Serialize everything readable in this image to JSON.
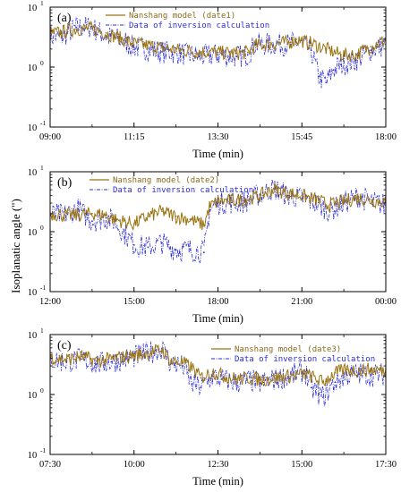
{
  "y_axis_label": "Isoplanatic angle (\")",
  "colors": {
    "model": "#9a7412",
    "inversion": "#2b2bd6"
  },
  "chart_data": [
    {
      "type": "line",
      "panel_label": "(a)",
      "xlabel": "Time (min)",
      "xticks": [
        "09:00",
        "11:15",
        "13:30",
        "15:45",
        "18:00"
      ],
      "x_range_hours": [
        9,
        18
      ],
      "yscale": "log",
      "ylim": [
        0.1,
        10
      ],
      "yticks": [
        "10",
        "10",
        "10"
      ],
      "ytick_exponents": [
        "1",
        "0",
        "-1"
      ],
      "legend_position": "top-left",
      "series": [
        {
          "name": "Nanshang model (date1)",
          "style": "solid",
          "points": [
            [
              9.0,
              3.6
            ],
            [
              9.3,
              3.8
            ],
            [
              9.7,
              4.3
            ],
            [
              10.1,
              4.4
            ],
            [
              10.5,
              3.7
            ],
            [
              10.9,
              3.0
            ],
            [
              11.2,
              2.5
            ],
            [
              11.6,
              2.3
            ],
            [
              12.0,
              2.1
            ],
            [
              12.5,
              1.9
            ],
            [
              13.0,
              1.8
            ],
            [
              13.5,
              1.75
            ],
            [
              14.0,
              1.7
            ],
            [
              14.3,
              1.75
            ],
            [
              14.5,
              2.3
            ],
            [
              15.45,
              2.6
            ],
            [
              15.6,
              2.9
            ],
            [
              16.0,
              2.5
            ],
            [
              16.4,
              2.0
            ],
            [
              16.8,
              1.6
            ],
            [
              17.2,
              1.6
            ],
            [
              17.6,
              2.2
            ],
            [
              18.0,
              2.8
            ]
          ]
        },
        {
          "name": "Data of inversion calculation",
          "style": "dash-dot",
          "points": [
            [
              9.0,
              3.3
            ],
            [
              9.3,
              3.1
            ],
            [
              9.7,
              4.6
            ],
            [
              10.1,
              4.7
            ],
            [
              10.5,
              3.2
            ],
            [
              10.9,
              2.9
            ],
            [
              11.2,
              2.2
            ],
            [
              11.6,
              2.0
            ],
            [
              12.0,
              1.8
            ],
            [
              12.5,
              1.7
            ],
            [
              13.0,
              1.5
            ],
            [
              13.5,
              1.6
            ],
            [
              14.0,
              1.5
            ],
            [
              14.3,
              1.6
            ],
            [
              14.5,
              2.4
            ],
            [
              15.45,
              2.4
            ],
            [
              15.6,
              2.6
            ],
            [
              16.0,
              1.9
            ],
            [
              16.2,
              0.7
            ],
            [
              16.4,
              0.55
            ],
            [
              16.6,
              0.9
            ],
            [
              16.8,
              1.1
            ],
            [
              17.2,
              1.3
            ],
            [
              17.6,
              1.9
            ],
            [
              18.0,
              2.4
            ]
          ]
        }
      ]
    },
    {
      "type": "line",
      "panel_label": "(b)",
      "xlabel": "Time (min)",
      "xticks": [
        "12:00",
        "15:00",
        "18:00",
        "21:00",
        "00:00"
      ],
      "x_range_hours": [
        12,
        24
      ],
      "yscale": "log",
      "ylim": [
        0.1,
        10
      ],
      "yticks": [
        "10",
        "10",
        "10"
      ],
      "ytick_exponents": [
        "1",
        "0",
        "-1"
      ],
      "legend_position": "top-right",
      "series": [
        {
          "name": "Nanshang model (date2)",
          "style": "solid",
          "points": [
            [
              12.0,
              2.0
            ],
            [
              12.5,
              1.9
            ],
            [
              13.0,
              1.9
            ],
            [
              13.5,
              2.0
            ],
            [
              14.0,
              1.9
            ],
            [
              14.3,
              1.6
            ],
            [
              15.0,
              1.35
            ],
            [
              15.5,
              1.8
            ],
            [
              16.0,
              2.2
            ],
            [
              16.5,
              1.8
            ],
            [
              17.0,
              1.6
            ],
            [
              17.5,
              1.3
            ],
            [
              17.7,
              2.6
            ],
            [
              18.0,
              3.2
            ],
            [
              18.5,
              3.3
            ],
            [
              19.0,
              3.5
            ],
            [
              19.5,
              4.0
            ],
            [
              20.0,
              5.1
            ],
            [
              20.5,
              4.4
            ],
            [
              21.0,
              4.0
            ],
            [
              21.5,
              3.4
            ],
            [
              22.0,
              2.8
            ],
            [
              22.5,
              3.2
            ],
            [
              23.0,
              3.7
            ],
            [
              23.5,
              3.3
            ],
            [
              24.0,
              3.2
            ]
          ]
        },
        {
          "name": "Data of inversion calculation",
          "style": "dash-dot",
          "points": [
            [
              12.0,
              1.9
            ],
            [
              12.5,
              1.9
            ],
            [
              13.0,
              2.4
            ],
            [
              13.5,
              1.5
            ],
            [
              14.0,
              1.7
            ],
            [
              14.3,
              1.5
            ],
            [
              15.0,
              0.6
            ],
            [
              15.5,
              0.55
            ],
            [
              16.0,
              0.65
            ],
            [
              16.5,
              0.5
            ],
            [
              17.0,
              0.5
            ],
            [
              17.5,
              0.45
            ],
            [
              17.7,
              2.3
            ],
            [
              18.0,
              3.0
            ],
            [
              18.5,
              3.1
            ],
            [
              19.0,
              3.2
            ],
            [
              19.5,
              4.2
            ],
            [
              20.0,
              5.3
            ],
            [
              20.5,
              4.0
            ],
            [
              21.0,
              3.6
            ],
            [
              21.5,
              3.0
            ],
            [
              22.0,
              2.2
            ],
            [
              22.5,
              3.0
            ],
            [
              23.0,
              3.9
            ],
            [
              23.5,
              3.1
            ],
            [
              24.0,
              2.8
            ]
          ]
        }
      ]
    },
    {
      "type": "line",
      "panel_label": "(c)",
      "xlabel": "Time (min)",
      "xticks": [
        "07:30",
        "10:00",
        "12:30",
        "15:00",
        "17:30"
      ],
      "x_range_hours": [
        6.25,
        17.5
      ],
      "yscale": "log",
      "ylim": [
        0.1,
        10
      ],
      "yticks": [
        "10",
        "10",
        "10"
      ],
      "ytick_exponents": [
        "1",
        "0",
        "-1"
      ],
      "legend_position": "top-right",
      "series": [
        {
          "name": "Nanshang model (date3)",
          "style": "solid",
          "points": [
            [
              6.25,
              4.2
            ],
            [
              6.8,
              3.8
            ],
            [
              7.3,
              4.3
            ],
            [
              7.8,
              3.6
            ],
            [
              8.3,
              3.9
            ],
            [
              8.8,
              4.3
            ],
            [
              9.3,
              4.7
            ],
            [
              9.8,
              5.3
            ],
            [
              10.0,
              5.6
            ],
            [
              10.3,
              3.6
            ],
            [
              10.7,
              3.4
            ],
            [
              11.0,
              2.8
            ],
            [
              11.3,
              1.9
            ],
            [
              11.7,
              2.4
            ],
            [
              12.0,
              2.1
            ],
            [
              12.5,
              1.8
            ],
            [
              13.0,
              1.9
            ],
            [
              13.3,
              1.75
            ],
            [
              14.8,
              2.2
            ],
            [
              15.0,
              2.0
            ],
            [
              15.4,
              1.6
            ],
            [
              15.8,
              2.3
            ],
            [
              16.2,
              2.6
            ],
            [
              16.6,
              2.5
            ],
            [
              17.0,
              2.6
            ],
            [
              17.5,
              2.5
            ]
          ]
        },
        {
          "name": "Data of inversion calculation",
          "style": "dash-dot",
          "points": [
            [
              6.25,
              3.8
            ],
            [
              6.8,
              3.5
            ],
            [
              7.3,
              3.9
            ],
            [
              7.8,
              3.2
            ],
            [
              8.3,
              3.5
            ],
            [
              8.8,
              4.0
            ],
            [
              9.3,
              4.5
            ],
            [
              9.8,
              5.5
            ],
            [
              10.0,
              5.9
            ],
            [
              10.3,
              3.3
            ],
            [
              10.7,
              3.0
            ],
            [
              11.0,
              1.5
            ],
            [
              11.3,
              1.3
            ],
            [
              11.7,
              2.0
            ],
            [
              12.0,
              1.8
            ],
            [
              12.5,
              1.6
            ],
            [
              13.0,
              1.7
            ],
            [
              13.3,
              1.55
            ],
            [
              14.8,
              2.4
            ],
            [
              15.0,
              1.3
            ],
            [
              15.4,
              0.9
            ],
            [
              15.8,
              1.6
            ],
            [
              16.2,
              2.1
            ],
            [
              16.6,
              2.2
            ],
            [
              17.0,
              2.1
            ],
            [
              17.5,
              2.2
            ]
          ]
        }
      ]
    }
  ]
}
